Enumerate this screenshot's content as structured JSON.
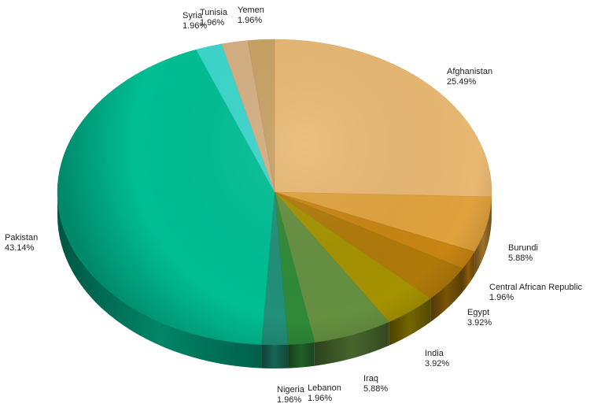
{
  "chart_data": {
    "type": "pie",
    "style": "3d",
    "title": "",
    "legend": "none",
    "labels": "outside",
    "slices": [
      {
        "name": "Afghanistan",
        "value": 25.49,
        "percent_label": "25.49%",
        "color": "#E8B872"
      },
      {
        "name": "Burundi",
        "value": 5.88,
        "percent_label": "5.88%",
        "color": "#E0A23D"
      },
      {
        "name": "Central African Republic",
        "value": 1.96,
        "percent_label": "1.96%",
        "color": "#C88512"
      },
      {
        "name": "Egypt",
        "value": 3.92,
        "percent_label": "3.92%",
        "color": "#B07A0A"
      },
      {
        "name": "India",
        "value": 3.92,
        "percent_label": "3.92%",
        "color": "#A59200"
      },
      {
        "name": "Iraq",
        "value": 5.88,
        "percent_label": "5.88%",
        "color": "#659040"
      },
      {
        "name": "Lebanon",
        "value": 1.96,
        "percent_label": "1.96%",
        "color": "#2F8A38"
      },
      {
        "name": "Nigeria",
        "value": 1.96,
        "percent_label": "1.96%",
        "color": "#22907A"
      },
      {
        "name": "Pakistan",
        "value": 43.14,
        "percent_label": "43.14%",
        "color": "#00BE93"
      },
      {
        "name": "Syria",
        "value": 1.96,
        "percent_label": "1.96%",
        "color": "#3CD6CC"
      },
      {
        "name": "Tunisia",
        "value": 1.96,
        "percent_label": "1.96%",
        "color": "#D4AF82"
      },
      {
        "name": "Yemen",
        "value": 1.96,
        "percent_label": "1.96%",
        "color": "#C9A263"
      }
    ]
  }
}
